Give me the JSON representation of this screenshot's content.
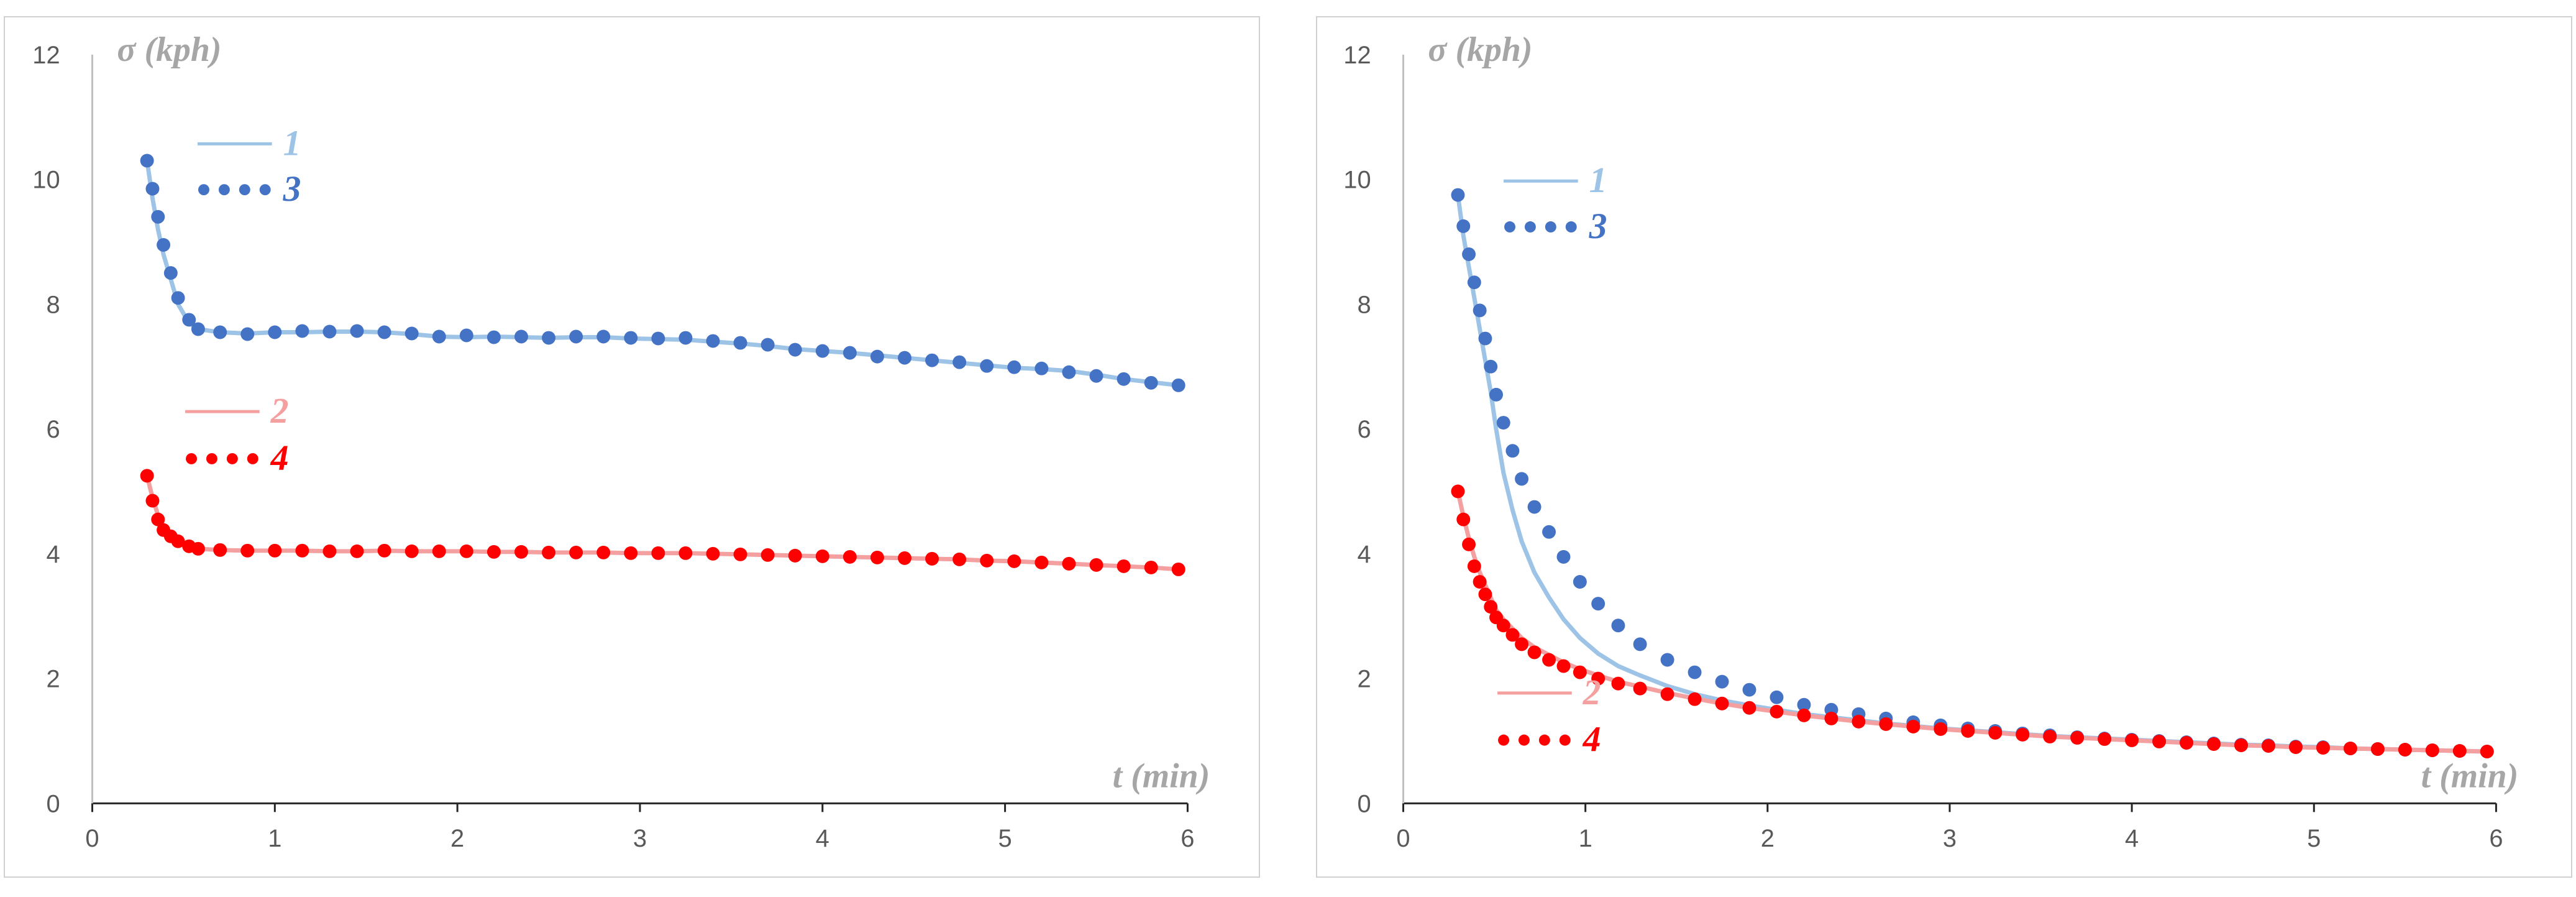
{
  "chart_data": [
    {
      "type": "line",
      "xlabel": "t (min)",
      "ylabel": "σ (kph)",
      "xlim": [
        0,
        6
      ],
      "ylim": [
        0,
        12
      ],
      "xticks": [
        "0",
        "1",
        "2",
        "3",
        "4",
        "5",
        "6"
      ],
      "yticks": [
        "0",
        "2",
        "4",
        "6",
        "8",
        "10",
        "12"
      ],
      "x": [
        0.3,
        0.33,
        0.36,
        0.39,
        0.43,
        0.47,
        0.53,
        0.58,
        0.7,
        0.85,
        1.0,
        1.15,
        1.3,
        1.45,
        1.6,
        1.75,
        1.9,
        2.05,
        2.2,
        2.35,
        2.5,
        2.65,
        2.8,
        2.95,
        3.1,
        3.25,
        3.4,
        3.55,
        3.7,
        3.85,
        4.0,
        4.15,
        4.3,
        4.45,
        4.6,
        4.75,
        4.9,
        5.05,
        5.2,
        5.35,
        5.5,
        5.65,
        5.8,
        5.95
      ],
      "series": [
        {
          "name": "1",
          "style": "line",
          "color": "#9dc3e6",
          "legend": "1",
          "values": [
            10.3,
            9.7,
            9.2,
            8.8,
            8.4,
            8.0,
            7.7,
            7.6,
            7.55,
            7.53,
            7.55,
            7.55,
            7.56,
            7.56,
            7.55,
            7.52,
            7.48,
            7.47,
            7.48,
            7.47,
            7.46,
            7.47,
            7.47,
            7.45,
            7.44,
            7.43,
            7.4,
            7.37,
            7.33,
            7.28,
            7.25,
            7.22,
            7.18,
            7.14,
            7.1,
            7.06,
            7.02,
            6.98,
            6.96,
            6.93,
            6.87,
            6.8,
            6.75,
            6.7
          ]
        },
        {
          "name": "3",
          "style": "dots",
          "color": "#4472c4",
          "legend": "3",
          "values": [
            10.3,
            9.85,
            9.4,
            8.95,
            8.5,
            8.1,
            7.75,
            7.6,
            7.55,
            7.52,
            7.55,
            7.57,
            7.56,
            7.57,
            7.55,
            7.53,
            7.48,
            7.5,
            7.47,
            7.48,
            7.46,
            7.48,
            7.48,
            7.46,
            7.45,
            7.46,
            7.41,
            7.38,
            7.35,
            7.27,
            7.25,
            7.22,
            7.16,
            7.14,
            7.1,
            7.07,
            7.01,
            6.99,
            6.97,
            6.91,
            6.85,
            6.8,
            6.74,
            6.7
          ]
        },
        {
          "name": "2",
          "style": "line",
          "color": "#f4a0a0",
          "legend": "2",
          "values": [
            5.25,
            4.9,
            4.62,
            4.45,
            4.32,
            4.22,
            4.12,
            4.08,
            4.06,
            4.05,
            4.05,
            4.05,
            4.04,
            4.04,
            4.05,
            4.04,
            4.04,
            4.04,
            4.03,
            4.03,
            4.02,
            4.02,
            4.02,
            4.01,
            4.01,
            4.01,
            4.0,
            3.99,
            3.98,
            3.97,
            3.96,
            3.95,
            3.94,
            3.93,
            3.92,
            3.91,
            3.89,
            3.88,
            3.86,
            3.84,
            3.82,
            3.8,
            3.78,
            3.75
          ]
        },
        {
          "name": "4",
          "style": "dots",
          "color": "#ff0000",
          "legend": "4",
          "values": [
            5.25,
            4.85,
            4.55,
            4.38,
            4.28,
            4.2,
            4.12,
            4.08,
            4.06,
            4.05,
            4.05,
            4.05,
            4.04,
            4.04,
            4.05,
            4.04,
            4.04,
            4.04,
            4.03,
            4.03,
            4.02,
            4.02,
            4.02,
            4.01,
            4.01,
            4.01,
            4.0,
            3.99,
            3.98,
            3.97,
            3.96,
            3.95,
            3.94,
            3.93,
            3.92,
            3.91,
            3.89,
            3.88,
            3.86,
            3.84,
            3.82,
            3.8,
            3.78,
            3.75
          ]
        }
      ]
    },
    {
      "type": "line",
      "xlabel": "t (min)",
      "ylabel": "σ (kph)",
      "xlim": [
        0,
        6
      ],
      "ylim": [
        0,
        12
      ],
      "xticks": [
        "0",
        "1",
        "2",
        "3",
        "4",
        "5",
        "6"
      ],
      "yticks": [
        "0",
        "2",
        "4",
        "6",
        "8",
        "10",
        "12"
      ],
      "x": [
        0.3,
        0.33,
        0.36,
        0.39,
        0.42,
        0.45,
        0.48,
        0.51,
        0.55,
        0.6,
        0.65,
        0.72,
        0.8,
        0.88,
        0.97,
        1.07,
        1.18,
        1.3,
        1.45,
        1.6,
        1.75,
        1.9,
        2.05,
        2.2,
        2.35,
        2.5,
        2.65,
        2.8,
        2.95,
        3.1,
        3.25,
        3.4,
        3.55,
        3.7,
        3.85,
        4.0,
        4.15,
        4.3,
        4.45,
        4.6,
        4.75,
        4.9,
        5.05,
        5.2,
        5.35,
        5.5,
        5.65,
        5.8,
        5.95
      ],
      "series": [
        {
          "name": "1",
          "style": "line",
          "color": "#9dc3e6",
          "legend": "1",
          "values": [
            9.75,
            9.1,
            8.6,
            8.1,
            7.6,
            7.1,
            6.6,
            6.0,
            5.3,
            4.7,
            4.2,
            3.7,
            3.3,
            2.95,
            2.65,
            2.4,
            2.2,
            2.05,
            1.88,
            1.75,
            1.65,
            1.57,
            1.5,
            1.43,
            1.38,
            1.33,
            1.28,
            1.24,
            1.2,
            1.17,
            1.14,
            1.11,
            1.08,
            1.06,
            1.04,
            1.02,
            1.0,
            0.98,
            0.96,
            0.94,
            0.93,
            0.91,
            0.9,
            0.88,
            0.87,
            0.86,
            0.85,
            0.84,
            0.83
          ]
        },
        {
          "name": "3",
          "style": "dots",
          "color": "#4472c4",
          "legend": "3",
          "values": [
            9.75,
            9.25,
            8.8,
            8.35,
            7.9,
            7.45,
            7.0,
            6.55,
            6.1,
            5.65,
            5.2,
            4.75,
            4.35,
            3.95,
            3.55,
            3.2,
            2.85,
            2.55,
            2.3,
            2.1,
            1.95,
            1.82,
            1.7,
            1.58,
            1.5,
            1.43,
            1.36,
            1.3,
            1.25,
            1.2,
            1.16,
            1.12,
            1.09,
            1.06,
            1.04,
            1.02,
            1.0,
            0.98,
            0.96,
            0.94,
            0.93,
            0.91,
            0.9,
            0.88,
            0.87,
            0.86,
            0.85,
            0.84,
            0.83
          ]
        },
        {
          "name": "2",
          "style": "line",
          "color": "#f4a0a0",
          "legend": "2",
          "values": [
            5.0,
            4.6,
            4.25,
            3.95,
            3.7,
            3.5,
            3.3,
            3.1,
            2.95,
            2.8,
            2.65,
            2.5,
            2.38,
            2.26,
            2.15,
            2.05,
            1.95,
            1.87,
            1.77,
            1.68,
            1.6,
            1.53,
            1.47,
            1.41,
            1.36,
            1.31,
            1.27,
            1.23,
            1.19,
            1.16,
            1.13,
            1.1,
            1.07,
            1.05,
            1.03,
            1.01,
            0.99,
            0.97,
            0.95,
            0.93,
            0.92,
            0.9,
            0.89,
            0.88,
            0.87,
            0.86,
            0.85,
            0.84,
            0.83
          ]
        },
        {
          "name": "4",
          "style": "dots",
          "color": "#ff0000",
          "legend": "4",
          "values": [
            5.0,
            4.55,
            4.15,
            3.8,
            3.55,
            3.35,
            3.15,
            2.98,
            2.85,
            2.7,
            2.55,
            2.42,
            2.3,
            2.2,
            2.1,
            2.0,
            1.92,
            1.84,
            1.75,
            1.67,
            1.6,
            1.53,
            1.47,
            1.41,
            1.36,
            1.31,
            1.27,
            1.23,
            1.19,
            1.16,
            1.13,
            1.1,
            1.07,
            1.05,
            1.03,
            1.01,
            0.99,
            0.97,
            0.95,
            0.93,
            0.92,
            0.9,
            0.89,
            0.88,
            0.87,
            0.86,
            0.85,
            0.84,
            0.83
          ]
        }
      ]
    }
  ]
}
